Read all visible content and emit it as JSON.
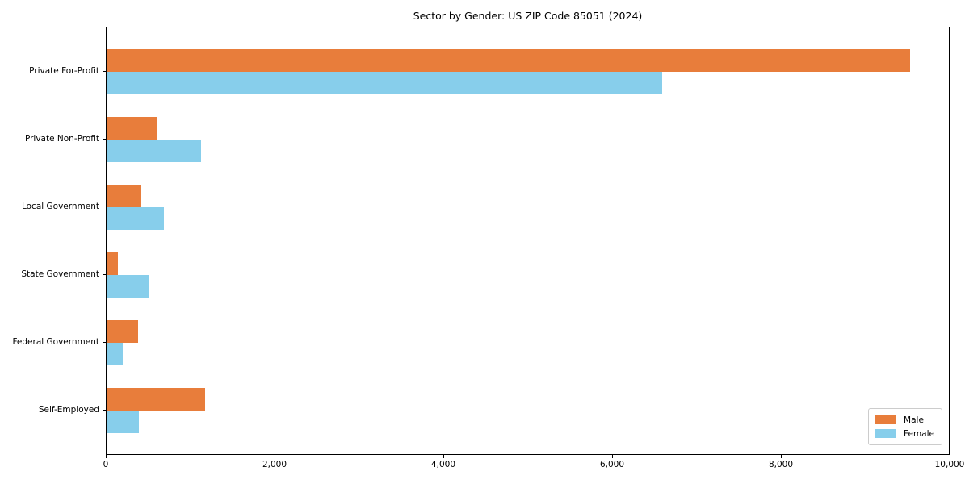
{
  "figure": {
    "background_color": "#ffffff",
    "frame_color": "#000000"
  },
  "chart_data": {
    "type": "bar",
    "orientation": "horizontal",
    "title": "Sector by Gender: US ZIP Code 85051 (2024)",
    "categories": [
      "Private For-Profit",
      "Private Non-Profit",
      "Local Government",
      "State Government",
      "Federal Government",
      "Self-Employed"
    ],
    "series": [
      {
        "name": "Male",
        "color": "#E87D3B",
        "values": [
          9520,
          600,
          410,
          135,
          370,
          1170
        ]
      },
      {
        "name": "Female",
        "color": "#87CEEB",
        "values": [
          6580,
          1120,
          680,
          500,
          190,
          380
        ]
      }
    ],
    "xlabel": "",
    "ylabel": "",
    "xlim": [
      0,
      10000
    ],
    "xticks": [
      0,
      2000,
      4000,
      6000,
      8000,
      10000
    ],
    "xtick_labels": [
      "0",
      "2,000",
      "4,000",
      "6,000",
      "8,000",
      "10,000"
    ],
    "grid": false,
    "legend": {
      "position": "lower right",
      "entries": [
        "Male",
        "Female"
      ]
    }
  }
}
